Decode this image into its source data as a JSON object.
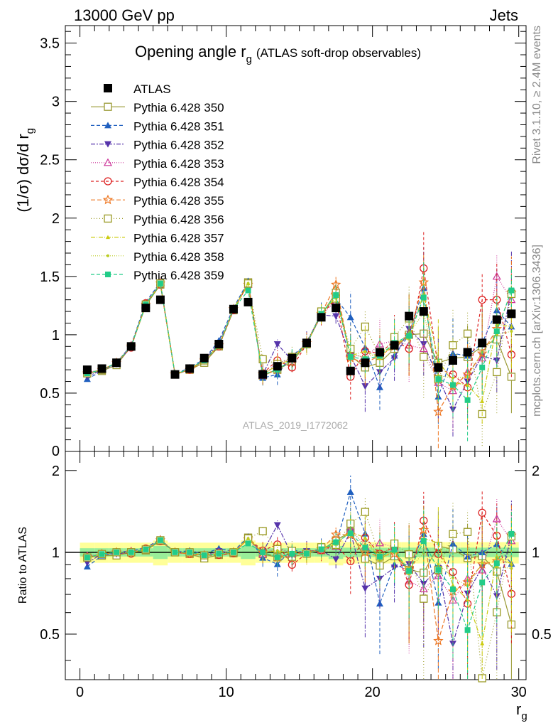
{
  "header": {
    "left": "13000 GeV pp",
    "right": "Jets"
  },
  "side_text": {
    "rivet": "Rivet 3.1.10, ≥ 2.4M events",
    "mcplots": "mcplots.cern.ch [arXiv:1306.3436]"
  },
  "watermark": "ATLAS_2019_I1772062",
  "chart_data": {
    "type": "scatter",
    "title_main": "Opening angle r",
    "title_sub": "g",
    "title_extra": "(ATLAS soft-drop observables)",
    "ylabel_main": "(1/σ) dσ/d r",
    "ylabel_sub": "g",
    "xlabel_main": "r",
    "xlabel_sub": "g",
    "ratio_ylabel": "Ratio to ATLAS",
    "xlim": [
      -1,
      30.5
    ],
    "ylim": [
      0,
      3.65
    ],
    "ratio_ylim": [
      0.34,
      2.35
    ],
    "x_ticks": [
      0,
      10,
      20,
      30
    ],
    "y_ticks": [
      0.5,
      1,
      1.5,
      2,
      2.5,
      3,
      3.5
    ],
    "y_tick_labels": [
      "0.5",
      "1",
      "1.5",
      "2",
      "2.5",
      "3",
      "3.5"
    ],
    "y_zero_label": "0",
    "ratio_ticks": [
      0.5,
      1,
      2
    ],
    "ratio_tick_labels": [
      "0.5",
      "1",
      "2"
    ],
    "x": [
      0.5,
      1.5,
      2.5,
      3.5,
      4.5,
      5.5,
      6.5,
      7.5,
      8.5,
      9.5,
      10.5,
      11.5,
      12.5,
      13.5,
      14.5,
      15.5,
      16.5,
      17.5,
      18.5,
      19.5,
      20.5,
      21.5,
      22.5,
      23.5,
      24.5,
      25.5,
      26.5,
      27.5,
      28.5,
      29.5
    ],
    "data": {
      "name": "ATLAS",
      "values": [
        0.7,
        0.71,
        0.76,
        0.9,
        1.23,
        1.3,
        0.66,
        0.71,
        0.8,
        0.92,
        1.22,
        1.28,
        0.66,
        0.73,
        0.8,
        0.93,
        1.15,
        1.23,
        0.69,
        0.76,
        0.85,
        0.91,
        1.16,
        1.2,
        0.72,
        0.78,
        0.85,
        0.93,
        1.13,
        1.18
      ]
    },
    "series": [
      {
        "name": "Pythia 6.428 350",
        "color": "#999933",
        "marker": "open-square",
        "dash": "none",
        "values": [
          0.67,
          0.69,
          0.74,
          0.9,
          1.25,
          1.43,
          0.66,
          0.7,
          0.76,
          0.9,
          1.21,
          1.45,
          0.65,
          0.7,
          0.77,
          0.92,
          1.17,
          1.36,
          0.82,
          0.72,
          0.76,
          0.88,
          1.0,
          1.01,
          0.76,
          0.8,
          0.81,
          0.9,
          0.96,
          0.64
        ]
      },
      {
        "name": "Pythia 6.428 351",
        "color": "#1f5fbf",
        "marker": "triangle-up",
        "dash": "5,3",
        "values": [
          0.62,
          0.69,
          0.76,
          0.91,
          1.28,
          1.45,
          0.66,
          0.72,
          0.79,
          0.95,
          1.23,
          1.46,
          0.63,
          0.66,
          0.82,
          0.92,
          1.19,
          1.31,
          1.15,
          0.89,
          0.55,
          0.82,
          1.0,
          1.4,
          0.47,
          0.84,
          0.82,
          0.93,
          1.21,
          1.07
        ]
      },
      {
        "name": "Pythia 6.428 352",
        "color": "#5533aa",
        "marker": "triangle-down",
        "dash": "6,2,2,2",
        "values": [
          0.64,
          0.7,
          0.75,
          0.9,
          1.26,
          1.44,
          0.66,
          0.71,
          0.78,
          0.93,
          1.21,
          1.44,
          0.66,
          0.92,
          0.78,
          0.94,
          1.17,
          1.16,
          0.82,
          0.56,
          0.68,
          0.8,
          1.05,
          0.92,
          0.63,
          0.36,
          0.6,
          0.82,
          0.78,
          1.37
        ]
      },
      {
        "name": "Pythia 6.428 353",
        "color": "#cc3399",
        "marker": "open-triangle",
        "dash": "1,2",
        "values": [
          0.68,
          0.7,
          0.76,
          0.91,
          1.26,
          1.45,
          0.66,
          0.71,
          0.78,
          0.92,
          1.22,
          1.43,
          0.65,
          0.76,
          0.79,
          0.92,
          1.17,
          1.29,
          0.84,
          0.8,
          0.92,
          0.95,
          0.91,
          0.88,
          0.59,
          0.52,
          0.68,
          0.8,
          1.5,
          1.3
        ]
      },
      {
        "name": "Pythia 6.428 354",
        "color": "#dd2222",
        "marker": "open-circle",
        "dash": "4,3",
        "values": [
          0.67,
          0.7,
          0.76,
          0.89,
          1.27,
          1.43,
          0.66,
          0.7,
          0.78,
          0.9,
          1.21,
          1.44,
          0.67,
          0.78,
          0.72,
          0.92,
          1.17,
          1.31,
          0.64,
          0.86,
          0.84,
          0.95,
          0.88,
          1.57,
          0.71,
          0.66,
          0.55,
          1.3,
          1.3,
          0.83
        ]
      },
      {
        "name": "Pythia 6.428 355",
        "color": "#ee7722",
        "marker": "open-star",
        "dash": "6,3",
        "values": [
          0.67,
          0.7,
          0.76,
          0.9,
          1.26,
          1.44,
          0.66,
          0.7,
          0.78,
          0.91,
          1.22,
          1.43,
          0.66,
          0.7,
          0.79,
          0.93,
          1.18,
          1.43,
          0.8,
          0.76,
          0.82,
          0.9,
          1.0,
          1.45,
          0.34,
          0.56,
          0.66,
          0.84,
          1.05,
          1.36
        ]
      },
      {
        "name": "Pythia 6.428 356",
        "color": "#999922",
        "marker": "open-square",
        "dash": "1,3",
        "values": [
          0.67,
          0.7,
          0.76,
          0.9,
          1.26,
          1.44,
          0.66,
          0.71,
          0.78,
          0.91,
          1.22,
          1.44,
          0.79,
          0.75,
          0.81,
          0.92,
          1.2,
          1.31,
          0.88,
          1.07,
          0.82,
          0.98,
          1.14,
          0.81,
          0.62,
          0.91,
          1.01,
          0.32,
          0.68,
          1.35
        ]
      },
      {
        "name": "Pythia 6.428 357",
        "color": "#cccc11",
        "marker": "small-triangle",
        "dash": "6,2,1,2",
        "values": [
          0.67,
          0.7,
          0.76,
          0.9,
          1.26,
          1.44,
          0.66,
          0.71,
          0.78,
          0.91,
          1.22,
          1.44,
          0.66,
          0.74,
          0.79,
          0.92,
          1.18,
          1.32,
          0.82,
          0.86,
          0.8,
          0.93,
          0.97,
          1.35,
          0.78,
          0.59,
          0.57,
          0.43,
          1.09,
          1.07
        ]
      },
      {
        "name": "Pythia 6.428 358",
        "color": "#bbcc22",
        "marker": "dot",
        "dash": "1,2",
        "values": [
          0.67,
          0.7,
          0.76,
          0.9,
          1.26,
          1.44,
          0.66,
          0.71,
          0.78,
          0.91,
          1.22,
          1.44,
          0.66,
          0.74,
          0.79,
          0.92,
          1.18,
          1.33,
          0.83,
          0.81,
          0.84,
          0.91,
          1.01,
          1.19,
          0.65,
          0.63,
          0.64,
          0.85,
          1.0,
          1.03
        ]
      },
      {
        "name": "Pythia 6.428 359",
        "color": "#22cc88",
        "marker": "filled-square",
        "dash": "5,3",
        "values": [
          0.67,
          0.7,
          0.76,
          0.9,
          1.26,
          1.44,
          0.66,
          0.71,
          0.78,
          0.91,
          1.22,
          1.38,
          0.66,
          0.7,
          0.79,
          0.92,
          1.18,
          1.34,
          0.81,
          0.79,
          0.82,
          0.93,
          0.99,
          1.32,
          0.62,
          0.57,
          0.44,
          0.72,
          1.03,
          1.38
        ]
      }
    ],
    "legend_position": "top-left"
  }
}
